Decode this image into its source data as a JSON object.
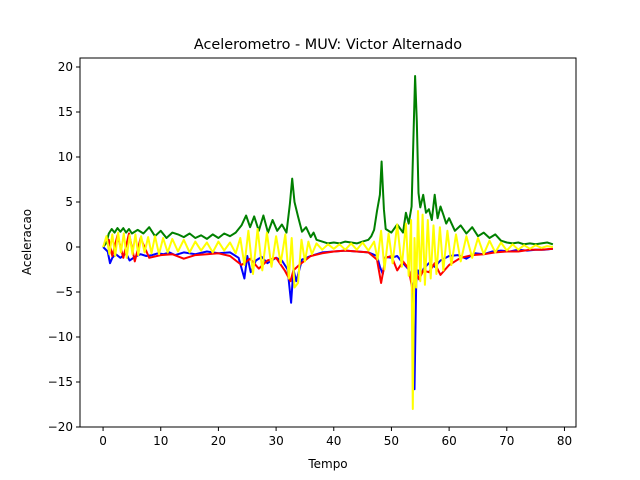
{
  "chart_data": {
    "type": "line",
    "title": "Acelerometro - MUV: Victor Alternado",
    "xlabel": "Tempo",
    "ylabel": "Aceleracao",
    "xlim": [
      -4,
      82
    ],
    "ylim": [
      -20,
      21
    ],
    "xticks": [
      0,
      10,
      20,
      30,
      40,
      50,
      60,
      70,
      80
    ],
    "yticks": [
      -20,
      -15,
      -10,
      -5,
      0,
      5,
      10,
      15,
      20
    ],
    "grid": false,
    "legend": "none",
    "series": [
      {
        "color": "#0000ff",
        "x": [
          0,
          0.8,
          1.2,
          1.6,
          2.2,
          3,
          4,
          4.6,
          5.5,
          6.5,
          7.5,
          8.5,
          9.5,
          10.5,
          11.5,
          12.5,
          14,
          16,
          18,
          20,
          22,
          23.5,
          24.5,
          25,
          25.6,
          26.5,
          27.5,
          28.5,
          30,
          31,
          32,
          32.6,
          33,
          33.5,
          34.5,
          36,
          38,
          40,
          42,
          44,
          46,
          47.5,
          48,
          48.5,
          49,
          50,
          51,
          52,
          53,
          53.6,
          54,
          54.3,
          54.6,
          55,
          55.6,
          56.5,
          57.5,
          58.5,
          60,
          61.5,
          63,
          64.5,
          66,
          67.5,
          69,
          70.5,
          72,
          73.5,
          75,
          76.5,
          78
        ],
        "y": [
          0,
          -0.5,
          -1.8,
          -1.2,
          -0.8,
          -1.2,
          -0.7,
          -1.5,
          -1.1,
          -0.8,
          -1,
          -0.9,
          -0.7,
          -0.8,
          -0.6,
          -0.9,
          -0.6,
          -0.8,
          -0.5,
          -0.7,
          -0.6,
          -1.2,
          -3.5,
          -1.0,
          -2.8,
          -1.5,
          -1.1,
          -1.8,
          -1.2,
          -1.5,
          -2.5,
          -6.2,
          -2.5,
          -3.8,
          -1.4,
          -1.0,
          -0.6,
          -0.5,
          -0.4,
          -0.5,
          -0.6,
          -1.0,
          -2.2,
          -3.0,
          -1.1,
          -1.2,
          -1.0,
          -1.8,
          -2.5,
          -4.2,
          -15.8,
          -4.0,
          -2.6,
          -3.2,
          -2.4,
          -1.8,
          -2.2,
          -1.5,
          -1.0,
          -0.9,
          -1.3,
          -0.7,
          -0.8,
          -0.5,
          -0.4,
          -0.5,
          -0.3,
          -0.4,
          -0.3,
          -0.3,
          -0.2
        ]
      },
      {
        "color": "#ff0000",
        "x": [
          0,
          1,
          1.6,
          2.5,
          3.5,
          4.5,
          5.5,
          6.5,
          8,
          10,
          12,
          14,
          16,
          18,
          20,
          22,
          24,
          25.5,
          27,
          28.5,
          30,
          31.5,
          32.5,
          33,
          34,
          36,
          38,
          40,
          42,
          44,
          46,
          47.5,
          48.2,
          49,
          50,
          51,
          52,
          53,
          53.7,
          54.2,
          54.8,
          55.5,
          56.5,
          57.5,
          58.5,
          60,
          62,
          64,
          66,
          68,
          70,
          72,
          74,
          76,
          78
        ],
        "y": [
          0,
          0.8,
          -1.0,
          1.3,
          -1.2,
          1.5,
          -1.6,
          1.0,
          -1.2,
          -0.9,
          -0.8,
          -1.3,
          -0.9,
          -0.8,
          -0.7,
          -1.0,
          -2.0,
          -1.3,
          -2.4,
          -1.5,
          -1.2,
          -2.6,
          -3.8,
          -2.6,
          -2.0,
          -1.0,
          -0.7,
          -0.5,
          -0.4,
          -0.5,
          -0.6,
          -1.4,
          -4.0,
          -1.2,
          -1.0,
          -2.6,
          -1.6,
          -2.4,
          -5.0,
          -2.6,
          -3.6,
          -2.6,
          -2.8,
          -1.8,
          -3.1,
          -2.0,
          -1.2,
          -0.9,
          -0.8,
          -0.6,
          -0.5,
          -0.5,
          -0.3,
          -0.3,
          -0.2
        ]
      },
      {
        "color": "#008000",
        "x": [
          0,
          0.6,
          1,
          1.5,
          2,
          2.5,
          3,
          3.5,
          4,
          4.5,
          5,
          6,
          7,
          8,
          9,
          10,
          11,
          12,
          13,
          14,
          15,
          16,
          17,
          18,
          19,
          20,
          21,
          22,
          23,
          24,
          24.8,
          25.5,
          26.2,
          27,
          27.8,
          28.6,
          29.4,
          30.2,
          31,
          31.8,
          32.4,
          32.8,
          33.2,
          33.8,
          34.5,
          35.2,
          36,
          36.5,
          37,
          38,
          39,
          40,
          41,
          42,
          43,
          44,
          45,
          46,
          46.5,
          47,
          47.5,
          48,
          48.3,
          48.7,
          49,
          50,
          51,
          52,
          52.5,
          53,
          53.5,
          53.8,
          54.1,
          54.4,
          54.7,
          55,
          55.5,
          56,
          56.5,
          57,
          57.5,
          58,
          58.5,
          59,
          59.5,
          60,
          61,
          62,
          63,
          64,
          65,
          66,
          67,
          68,
          69,
          70,
          71,
          72,
          73,
          74,
          75,
          76,
          77,
          78
        ],
        "y": [
          0,
          0.5,
          1.5,
          2.0,
          1.6,
          2.1,
          1.7,
          2.1,
          1.6,
          2.0,
          1.5,
          1.9,
          1.5,
          2.2,
          1.2,
          1.8,
          1.0,
          1.6,
          1.4,
          1.1,
          1.5,
          1.0,
          1.3,
          0.9,
          1.4,
          1.0,
          1.5,
          1.2,
          1.6,
          2.4,
          3.5,
          2.2,
          3.4,
          1.8,
          3.5,
          1.6,
          3.0,
          1.8,
          2.5,
          1.6,
          4.8,
          7.6,
          5.0,
          3.4,
          1.7,
          2.2,
          1.1,
          1.6,
          0.8,
          0.6,
          0.4,
          0.5,
          0.4,
          0.6,
          0.5,
          0.4,
          0.6,
          0.8,
          1.2,
          1.9,
          4.0,
          5.8,
          9.5,
          4.2,
          2.0,
          1.6,
          2.5,
          1.6,
          3.8,
          2.6,
          4.5,
          12.0,
          19.0,
          14.0,
          6.0,
          4.4,
          5.8,
          3.8,
          4.2,
          3.0,
          5.8,
          3.2,
          4.5,
          3.6,
          2.6,
          3.2,
          1.8,
          2.4,
          1.5,
          2.2,
          1.2,
          1.6,
          1.0,
          1.4,
          0.7,
          0.5,
          0.4,
          0.5,
          0.3,
          0.4,
          0.3,
          0.4,
          0.5,
          0.3
        ]
      },
      {
        "color": "#ffff00",
        "x": [
          0,
          0.6,
          1.1,
          1.6,
          2.1,
          2.6,
          3.1,
          3.6,
          4.1,
          4.6,
          5.1,
          5.6,
          6.1,
          6.6,
          7.2,
          7.8,
          8.4,
          9,
          9.7,
          10.4,
          11.2,
          12,
          13,
          14,
          15,
          16,
          17,
          18,
          19,
          20,
          21,
          22,
          23,
          23.8,
          24.5,
          25.2,
          26,
          26.8,
          27.6,
          28.4,
          29.2,
          30,
          30.8,
          31.6,
          32.2,
          32.7,
          33.2,
          33.8,
          34.4,
          35,
          35.6,
          36.2,
          37,
          38,
          39,
          40,
          41,
          42,
          43,
          44,
          45,
          46,
          47,
          47.6,
          48.2,
          48.8,
          49.5,
          50.2,
          51,
          51.8,
          52.5,
          53,
          53.4,
          53.7,
          54,
          54.3,
          54.6,
          55,
          55.4,
          55.8,
          56.3,
          56.8,
          57.3,
          57.8,
          58.4,
          59,
          59.7,
          60.4,
          61.2,
          62,
          63,
          64,
          65,
          66,
          67,
          68,
          69,
          70,
          71,
          72,
          73,
          74,
          75,
          76,
          77,
          78
        ],
        "y": [
          0,
          1.2,
          -0.8,
          1.4,
          -1.0,
          1.6,
          -0.6,
          1.5,
          -1.2,
          1.3,
          -0.8,
          1.4,
          -0.9,
          1.2,
          -0.6,
          1.1,
          -0.7,
          1.2,
          -0.8,
          1.0,
          -0.6,
          0.9,
          -0.5,
          0.8,
          -0.6,
          0.6,
          -0.4,
          0.5,
          -0.6,
          0.6,
          -0.4,
          0.5,
          -0.7,
          1.0,
          -2.0,
          1.8,
          -3.0,
          2.0,
          -2.6,
          1.6,
          -2.2,
          1.2,
          -1.8,
          1.4,
          -3.5,
          1.0,
          -4.5,
          -4.0,
          0.8,
          -1.6,
          0.6,
          -0.8,
          0.4,
          -0.3,
          0.3,
          -0.2,
          0.3,
          -0.3,
          0.4,
          -0.3,
          0.5,
          -0.4,
          0.6,
          -1.4,
          1.8,
          -2.5,
          1.5,
          -1.8,
          2.5,
          -2.2,
          2.6,
          -3.2,
          3.0,
          -18.0,
          1.0,
          -4.5,
          4.0,
          -3.8,
          3.6,
          -4.2,
          3.0,
          -3.5,
          2.4,
          -3.0,
          2.2,
          -2.6,
          1.8,
          -2.0,
          1.4,
          -1.6,
          1.2,
          -1.2,
          1.0,
          -0.8,
          0.7,
          -0.6,
          0.5,
          -0.4,
          0.3,
          -0.3,
          0.2,
          -0.2,
          0.2,
          -0.1,
          0.1,
          0
        ]
      }
    ]
  }
}
